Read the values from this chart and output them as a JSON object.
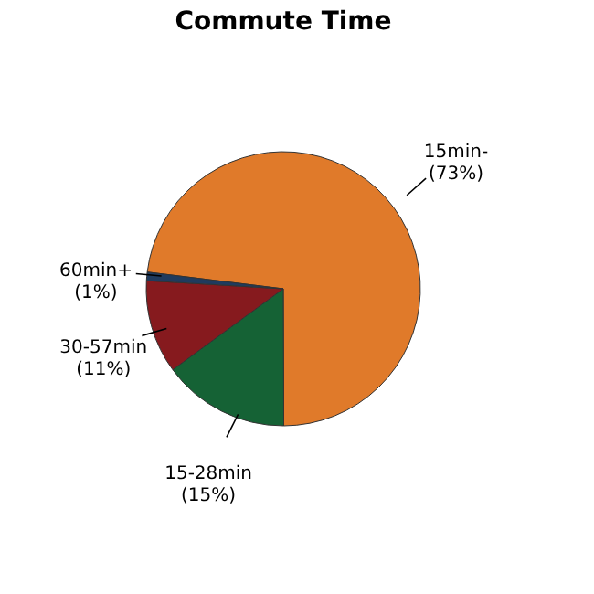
{
  "chart_data": {
    "type": "pie",
    "title": "Commute Time",
    "categories": [
      "15min-",
      "15-28min",
      "30-57min",
      "60min+"
    ],
    "values": [
      73,
      15,
      11,
      1
    ],
    "value_labels": [
      "(73%)",
      "(15%)",
      "(11%)",
      "(1%)"
    ],
    "colors": [
      "#e07a2a",
      "#156235",
      "#861a1e",
      "#1f3b5e"
    ]
  }
}
